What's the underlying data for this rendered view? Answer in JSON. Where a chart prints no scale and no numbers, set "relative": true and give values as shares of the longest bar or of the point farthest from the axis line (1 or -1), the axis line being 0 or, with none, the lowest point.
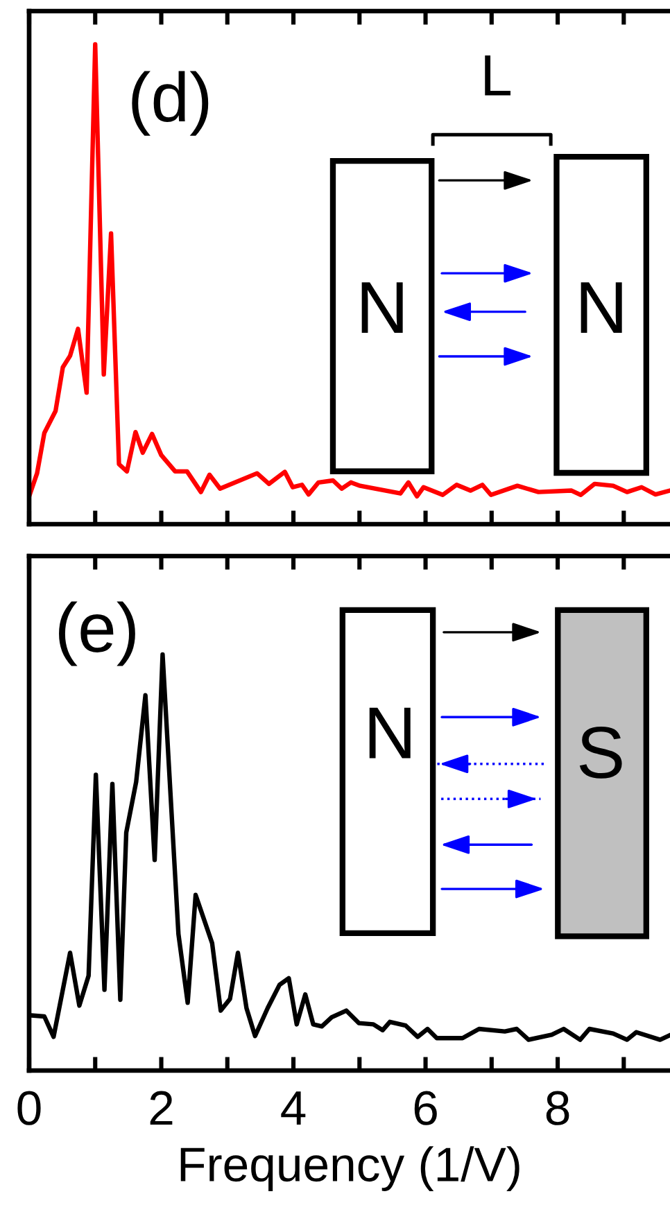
{
  "chart_data": [
    {
      "type": "line",
      "relative": true,
      "xlim": [
        0,
        9.7
      ],
      "xticks": [
        0,
        {
          "value": 1,
          "label": null
        },
        2,
        {
          "value": 3,
          "label": null
        },
        4,
        {
          "value": 5,
          "label": null
        },
        6,
        {
          "value": 7,
          "label": null
        },
        8,
        {
          "value": 9,
          "label": null
        }
      ],
      "tick_labels": false,
      "grid": false,
      "annotations": [
        "(d)",
        "L",
        "N",
        "N"
      ],
      "series": [
        {
          "color": "#ff0000",
          "x": [
            0,
            0.12,
            0.23,
            0.4,
            0.51,
            0.62,
            0.74,
            0.87,
            1.0,
            1.13,
            1.24,
            1.36,
            1.48,
            1.61,
            1.72,
            1.86,
            2.0,
            2.21,
            2.39,
            2.6,
            2.73,
            2.89,
            3.45,
            3.63,
            3.87,
            3.99,
            4.13,
            4.23,
            4.38,
            4.6,
            4.73,
            4.87,
            5.01,
            5.62,
            5.74,
            5.87,
            5.97,
            6.26,
            6.47,
            6.68,
            6.86,
            6.99,
            7.39,
            7.71,
            8.21,
            8.35,
            8.56,
            8.84,
            9.05,
            9.27,
            9.48,
            9.7
          ],
          "values": [
            0.058,
            0.106,
            0.19,
            0.236,
            0.327,
            0.351,
            0.407,
            0.274,
            1.0,
            0.312,
            0.606,
            0.125,
            0.11,
            0.192,
            0.149,
            0.188,
            0.144,
            0.11,
            0.11,
            0.067,
            0.103,
            0.074,
            0.106,
            0.084,
            0.109,
            0.077,
            0.082,
            0.062,
            0.087,
            0.091,
            0.074,
            0.087,
            0.08,
            0.064,
            0.087,
            0.058,
            0.077,
            0.061,
            0.082,
            0.07,
            0.082,
            0.061,
            0.08,
            0.067,
            0.07,
            0.061,
            0.084,
            0.08,
            0.067,
            0.077,
            0.062,
            0.07
          ]
        }
      ]
    },
    {
      "type": "line",
      "relative": true,
      "xlim": [
        0,
        9.7
      ],
      "xticks": [
        0,
        {
          "value": 1,
          "label": null
        },
        2,
        {
          "value": 3,
          "label": null
        },
        4,
        {
          "value": 5,
          "label": null
        },
        6,
        {
          "value": 7,
          "label": null
        },
        8,
        {
          "value": 9,
          "label": null
        }
      ],
      "tick_labels": "x",
      "grid": false,
      "xlabel": "Frequency (1/V)",
      "annotations": [
        "(e)",
        "N",
        "S"
      ],
      "series": [
        {
          "color": "#000000",
          "x": [
            0,
            0.23,
            0.37,
            0.62,
            0.76,
            0.9,
            1.01,
            1.14,
            1.26,
            1.38,
            1.47,
            1.62,
            1.76,
            1.9,
            2.02,
            2.26,
            2.4,
            2.52,
            2.77,
            2.9,
            3.04,
            3.16,
            3.29,
            3.42,
            3.61,
            3.79,
            3.93,
            4.05,
            4.18,
            4.3,
            4.43,
            4.58,
            4.8,
            4.99,
            5.21,
            5.35,
            5.46,
            5.7,
            5.88,
            6.03,
            6.17,
            6.56,
            6.81,
            7.2,
            7.38,
            7.56,
            7.91,
            8.09,
            8.34,
            8.48,
            8.84,
            9.05,
            9.19,
            9.55,
            9.7
          ],
          "values": [
            0.133,
            0.13,
            0.081,
            0.283,
            0.156,
            0.228,
            0.711,
            0.194,
            0.689,
            0.17,
            0.572,
            0.694,
            0.902,
            0.506,
            1.0,
            0.328,
            0.163,
            0.422,
            0.306,
            0.144,
            0.172,
            0.283,
            0.15,
            0.083,
            0.15,
            0.206,
            0.222,
            0.111,
            0.183,
            0.111,
            0.106,
            0.128,
            0.144,
            0.114,
            0.111,
            0.097,
            0.117,
            0.108,
            0.081,
            0.1,
            0.078,
            0.078,
            0.1,
            0.094,
            0.1,
            0.074,
            0.086,
            0.1,
            0.074,
            0.1,
            0.089,
            0.074,
            0.092,
            0.074,
            0.085
          ]
        }
      ]
    }
  ]
}
